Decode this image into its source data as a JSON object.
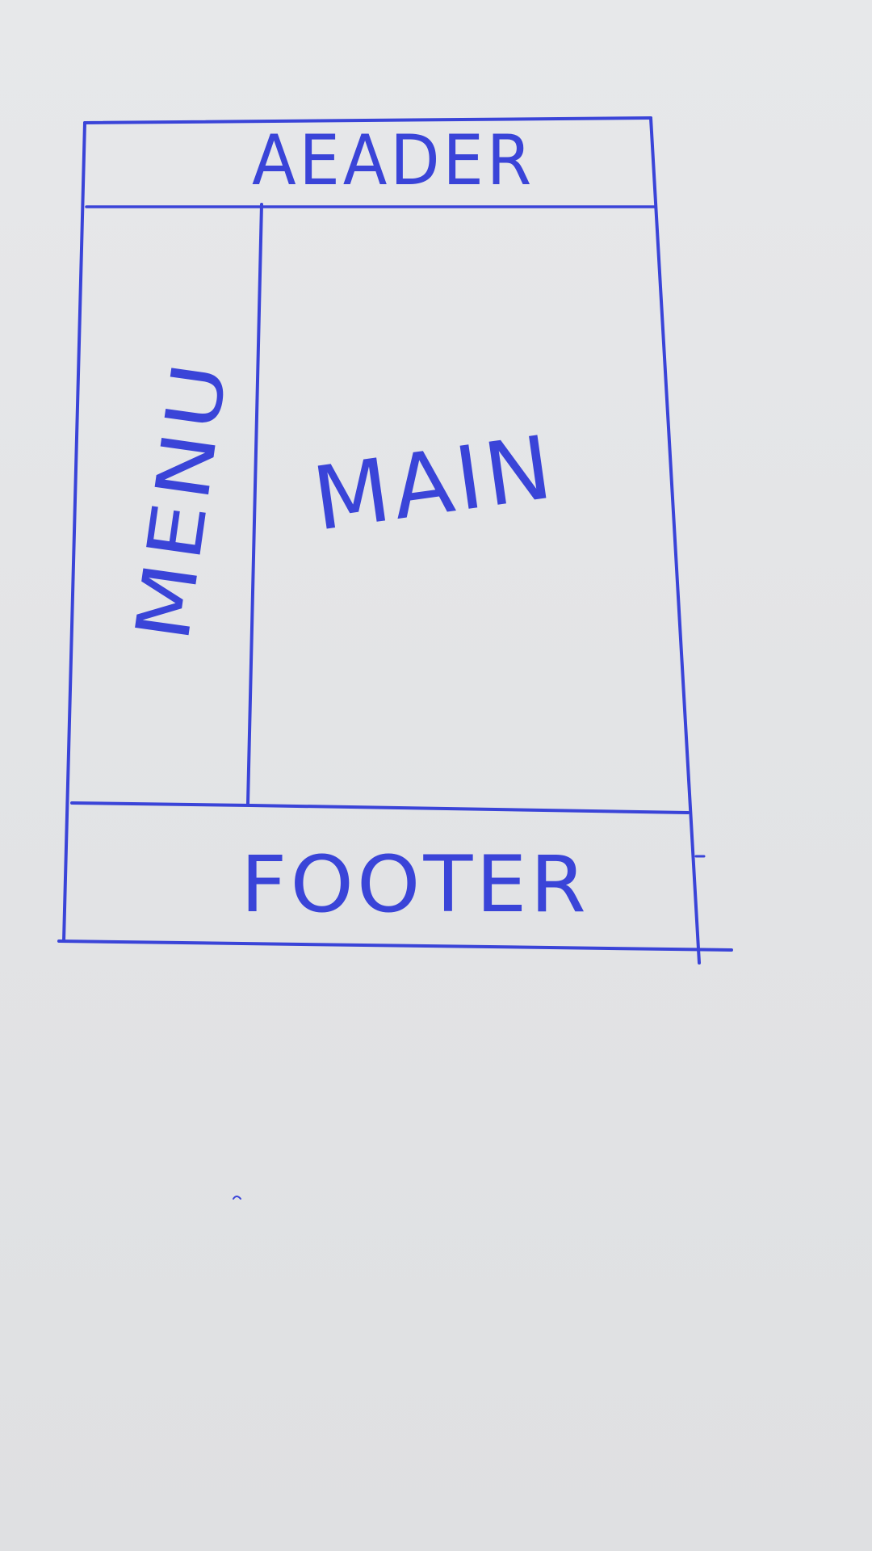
{
  "sketch": {
    "ink_color": "#3a44d8",
    "paper_color": "#e4e5e7",
    "regions": {
      "header": "AEADER",
      "menu": "MENU",
      "main": "MAIN",
      "footer": "FOOTER"
    }
  }
}
